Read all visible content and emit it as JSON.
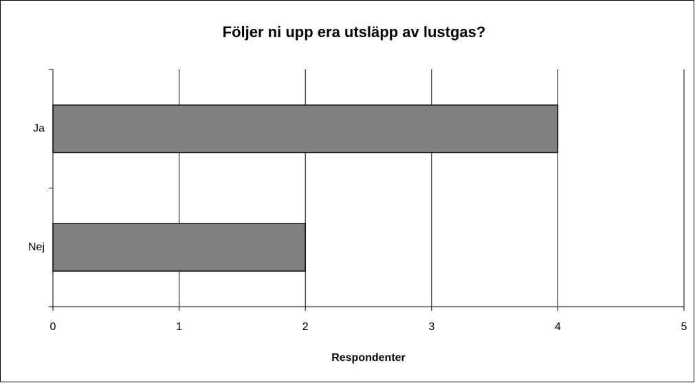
{
  "chart_data": {
    "type": "bar",
    "orientation": "horizontal",
    "title": "Följer ni upp era utsläpp av lustgas?",
    "x_label": "Respondenter",
    "categories": [
      "Ja",
      "Nej"
    ],
    "values": [
      4,
      2
    ],
    "color": "#808080",
    "xlim": [
      0,
      5
    ],
    "xticks": [
      0,
      1,
      2,
      3,
      4,
      5
    ],
    "grid": true
  }
}
